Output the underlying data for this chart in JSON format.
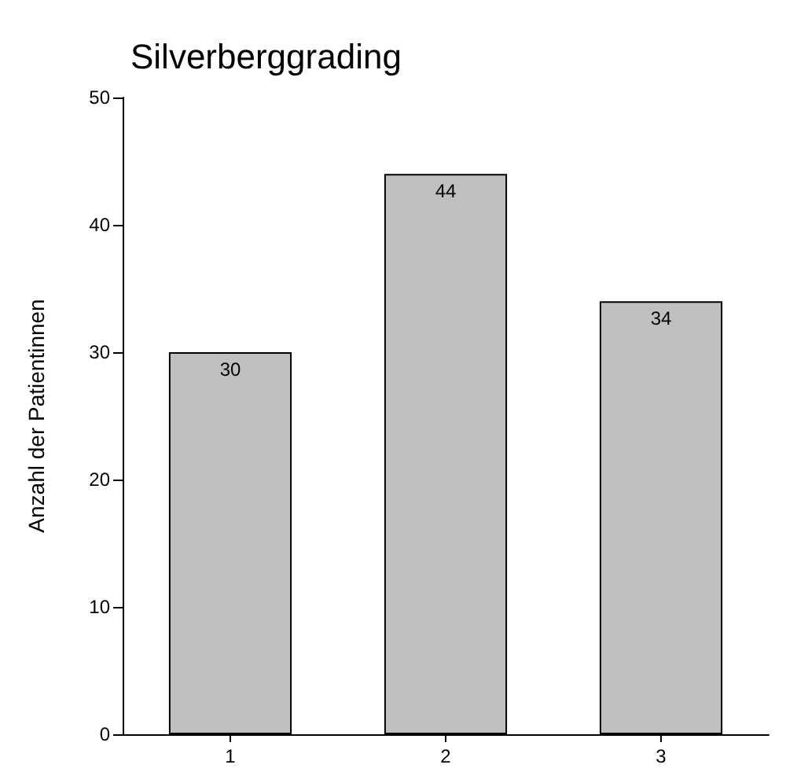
{
  "chart_data": {
    "type": "bar",
    "title": "Silverberggrading",
    "ylabel": "Anzahl der Patientinnen",
    "categories": [
      "1",
      "2",
      "3"
    ],
    "values": [
      30,
      44,
      34
    ],
    "color": "#c0c0c0",
    "ylim": [
      0,
      50
    ],
    "yticks": [
      0,
      10,
      20,
      30,
      40,
      50
    ],
    "data_labels": true,
    "grid": false
  }
}
